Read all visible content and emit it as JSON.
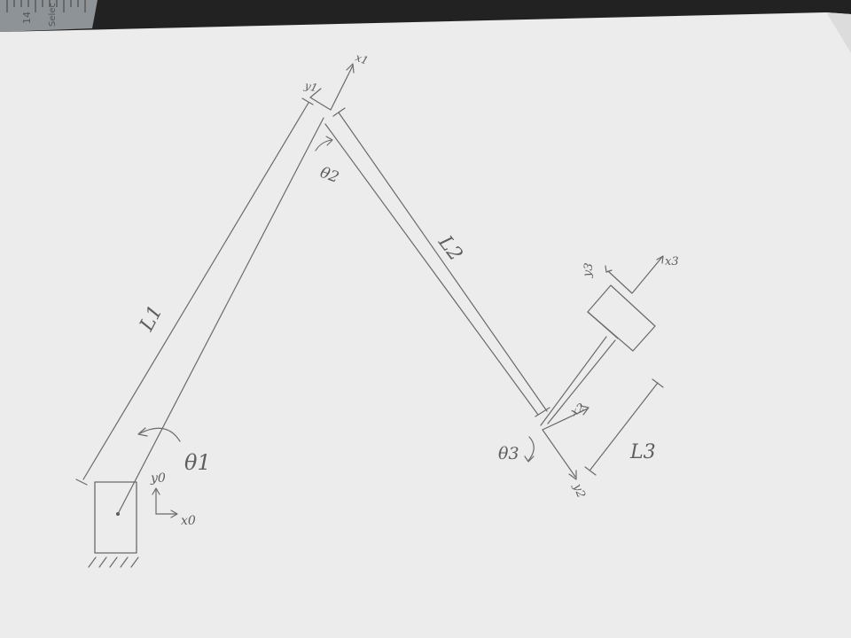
{
  "ruler": {
    "number": "14",
    "word": "Selec"
  },
  "labels": {
    "l1": "L1",
    "l2": "L2",
    "l3": "L3",
    "theta1": "θ1",
    "theta2": "θ2",
    "theta3": "θ3",
    "x0": "x0",
    "y0": "y0",
    "x1": "x1",
    "y1": "y1",
    "x2": "x2",
    "y2": "y2",
    "x3": "x3",
    "y3": "y3"
  }
}
